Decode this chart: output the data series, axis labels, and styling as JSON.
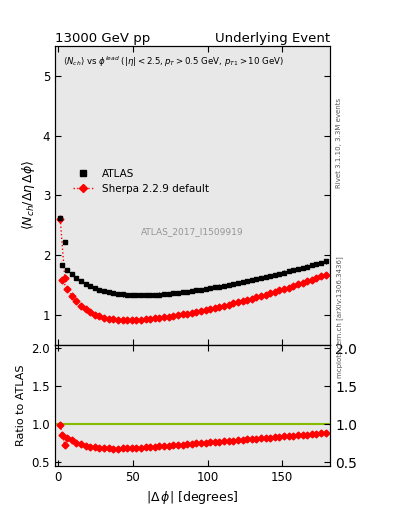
{
  "title_left": "13000 GeV pp",
  "title_right": "Underlying Event",
  "ylabel_main": "$\\langle N_{ch}/ \\Delta\\eta\\,\\Delta\\phi \\rangle$",
  "ylabel_ratio": "Ratio to ATLAS",
  "xlabel": "$|\\Delta\\,\\phi|$ [degrees]",
  "watermark": "ATLAS_2017_I1509919",
  "right_label_top": "Rivet 3.1.10, 3.3M events",
  "right_label_bot": "mcplots.cern.ch [arXiv:1306.3436]",
  "ylim_main": [
    0.5,
    5.5
  ],
  "ylim_ratio": [
    0.45,
    2.05
  ],
  "yticks_main": [
    1,
    2,
    3,
    4,
    5
  ],
  "yticks_ratio": [
    0.5,
    1.0,
    1.5,
    2.0
  ],
  "xlim": [
    -2,
    182
  ],
  "ratio_line_color": "#88bb00",
  "bg_color": "#e8e8e8"
}
